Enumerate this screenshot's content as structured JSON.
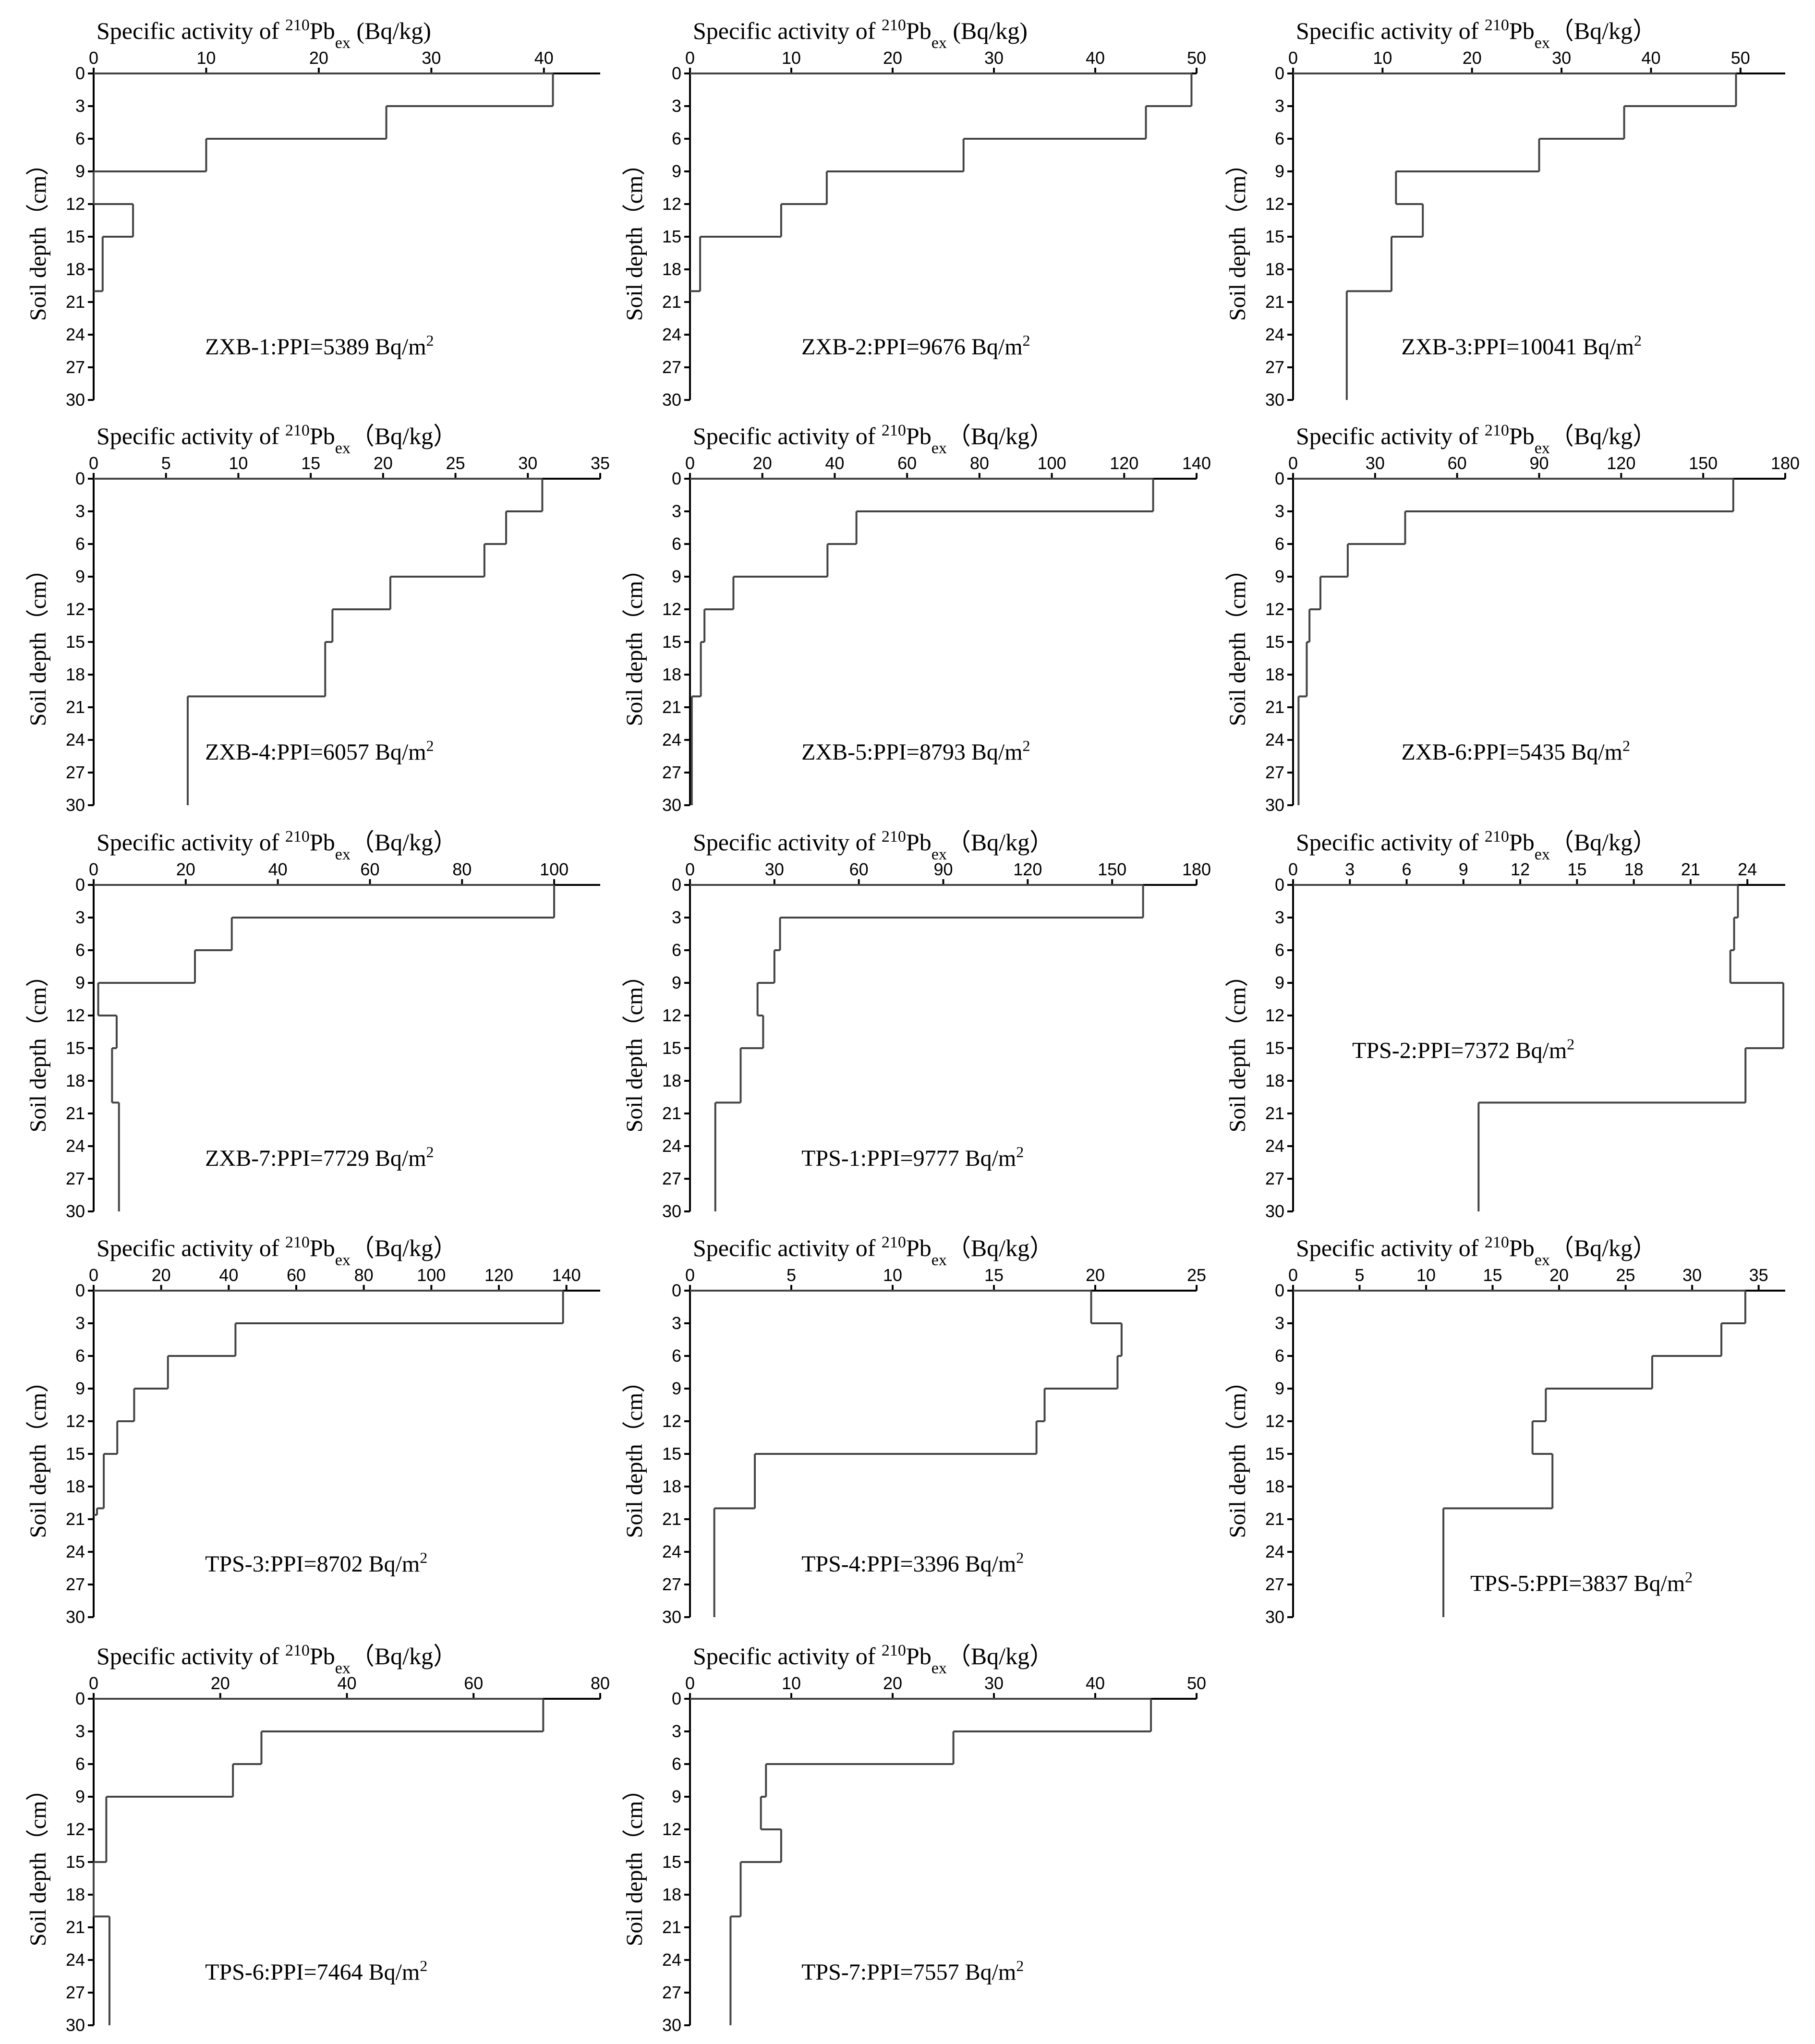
{
  "figure": {
    "line_color": "#444444",
    "axis_color": "#000000"
  },
  "chart_data": [
    {
      "id": "ZXB-1",
      "type": "line",
      "title": "Specific activity of",
      "title_sup": "210",
      "title_main": "Pb",
      "title_sub": "ex",
      "title_unit": " (Bq/kg)",
      "ylabel": "Soil depth（cm）",
      "xlim": [
        0,
        45
      ],
      "xticks": [
        0,
        10,
        20,
        30,
        40
      ],
      "ylim": [
        0,
        30
      ],
      "yticks": [
        0,
        3,
        6,
        9,
        12,
        15,
        18,
        21,
        24,
        27,
        30
      ],
      "annotation": "ZXB-1:PPI=5389 Bq/m",
      "annotation_sup": "2",
      "profile": [
        {
          "depth_top": 0,
          "depth_bottom": 3,
          "activity": 40.8
        },
        {
          "depth_top": 3,
          "depth_bottom": 6,
          "activity": 26
        },
        {
          "depth_top": 6,
          "depth_bottom": 9,
          "activity": 10
        },
        {
          "depth_top": 9,
          "depth_bottom": 12,
          "activity": 0
        },
        {
          "depth_top": 12,
          "depth_bottom": 15,
          "activity": 3.5
        },
        {
          "depth_top": 15,
          "depth_bottom": 20,
          "activity": 0.8
        }
      ]
    },
    {
      "id": "ZXB-2",
      "type": "line",
      "title": "Specific activity of",
      "title_sup": "210",
      "title_main": "Pb",
      "title_sub": "ex",
      "title_unit": " (Bq/kg)",
      "ylabel": "Soil depth（cm）",
      "xlim": [
        0,
        50
      ],
      "xticks": [
        0,
        10,
        20,
        30,
        40,
        50
      ],
      "ylim": [
        0,
        30
      ],
      "yticks": [
        0,
        3,
        6,
        9,
        12,
        15,
        18,
        21,
        24,
        27,
        30
      ],
      "annotation": "ZXB-2:PPI=9676 Bq/m",
      "annotation_sup": "2",
      "profile": [
        {
          "depth_top": 0,
          "depth_bottom": 3,
          "activity": 49.5
        },
        {
          "depth_top": 3,
          "depth_bottom": 6,
          "activity": 45
        },
        {
          "depth_top": 6,
          "depth_bottom": 9,
          "activity": 27
        },
        {
          "depth_top": 9,
          "depth_bottom": 12,
          "activity": 13.5
        },
        {
          "depth_top": 12,
          "depth_bottom": 15,
          "activity": 9
        },
        {
          "depth_top": 15,
          "depth_bottom": 20,
          "activity": 1
        }
      ]
    },
    {
      "id": "ZXB-3",
      "type": "line",
      "title": "Specific activity of",
      "title_sup": "210",
      "title_main": "Pb",
      "title_sub": "ex",
      "title_unit": "（Bq/kg）",
      "ylabel": "Soil depth（cm）",
      "xlim": [
        0,
        55
      ],
      "xticks": [
        0,
        10,
        20,
        30,
        40,
        50
      ],
      "ylim": [
        0,
        30
      ],
      "yticks": [
        0,
        3,
        6,
        9,
        12,
        15,
        18,
        21,
        24,
        27,
        30
      ],
      "annotation": "ZXB-3:PPI=10041 Bq/m",
      "annotation_sup": "2",
      "profile": [
        {
          "depth_top": 0,
          "depth_bottom": 3,
          "activity": 49.5
        },
        {
          "depth_top": 3,
          "depth_bottom": 6,
          "activity": 37
        },
        {
          "depth_top": 6,
          "depth_bottom": 9,
          "activity": 27.5
        },
        {
          "depth_top": 9,
          "depth_bottom": 12,
          "activity": 11.5
        },
        {
          "depth_top": 12,
          "depth_bottom": 15,
          "activity": 14.5
        },
        {
          "depth_top": 15,
          "depth_bottom": 20,
          "activity": 11
        },
        {
          "depth_top": 20,
          "depth_bottom": 30,
          "activity": 6
        }
      ]
    },
    {
      "id": "ZXB-4",
      "type": "line",
      "title": "Specific activity of",
      "title_sup": "210",
      "title_main": "Pb",
      "title_sub": "ex",
      "title_unit": "（Bq/kg）",
      "ylabel": "Soil depth（cm）",
      "xlim": [
        0,
        35
      ],
      "xticks": [
        0,
        5,
        10,
        15,
        20,
        25,
        30,
        35
      ],
      "ylim": [
        0,
        30
      ],
      "yticks": [
        0,
        3,
        6,
        9,
        12,
        15,
        18,
        21,
        24,
        27,
        30
      ],
      "annotation": "ZXB-4:PPI=6057 Bq/m",
      "annotation_sup": "2",
      "profile": [
        {
          "depth_top": 0,
          "depth_bottom": 3,
          "activity": 31
        },
        {
          "depth_top": 3,
          "depth_bottom": 6,
          "activity": 28.5
        },
        {
          "depth_top": 6,
          "depth_bottom": 9,
          "activity": 27
        },
        {
          "depth_top": 9,
          "depth_bottom": 12,
          "activity": 20.5
        },
        {
          "depth_top": 12,
          "depth_bottom": 15,
          "activity": 16.5
        },
        {
          "depth_top": 15,
          "depth_bottom": 20,
          "activity": 16
        },
        {
          "depth_top": 20,
          "depth_bottom": 30,
          "activity": 6.5
        }
      ]
    },
    {
      "id": "ZXB-5",
      "type": "line",
      "title": "Specific activity of",
      "title_sup": "210",
      "title_main": "Pb",
      "title_sub": "ex",
      "title_unit": "（Bq/kg）",
      "ylabel": "Soil depth（cm）",
      "xlim": [
        0,
        140
      ],
      "xticks": [
        0,
        20,
        40,
        60,
        80,
        100,
        120,
        140
      ],
      "ylim": [
        0,
        30
      ],
      "yticks": [
        0,
        3,
        6,
        9,
        12,
        15,
        18,
        21,
        24,
        27,
        30
      ],
      "annotation": "ZXB-5:PPI=8793 Bq/m",
      "annotation_sup": "2",
      "profile": [
        {
          "depth_top": 0,
          "depth_bottom": 3,
          "activity": 128
        },
        {
          "depth_top": 3,
          "depth_bottom": 6,
          "activity": 46
        },
        {
          "depth_top": 6,
          "depth_bottom": 9,
          "activity": 38
        },
        {
          "depth_top": 9,
          "depth_bottom": 12,
          "activity": 12
        },
        {
          "depth_top": 12,
          "depth_bottom": 15,
          "activity": 4
        },
        {
          "depth_top": 15,
          "depth_bottom": 20,
          "activity": 3
        },
        {
          "depth_top": 20,
          "depth_bottom": 30,
          "activity": 0.5
        }
      ]
    },
    {
      "id": "ZXB-6",
      "type": "line",
      "title": "Specific activity of",
      "title_sup": "210",
      "title_main": "Pb",
      "title_sub": "ex",
      "title_unit": "（Bq/kg）",
      "ylabel": "Soil depth（cm）",
      "xlim": [
        0,
        180
      ],
      "xticks": [
        0,
        30,
        60,
        90,
        120,
        150,
        180
      ],
      "ylim": [
        0,
        30
      ],
      "yticks": [
        0,
        3,
        6,
        9,
        12,
        15,
        18,
        21,
        24,
        27,
        30
      ],
      "annotation": "ZXB-6:PPI=5435 Bq/m",
      "annotation_sup": "2",
      "profile": [
        {
          "depth_top": 0,
          "depth_bottom": 3,
          "activity": 161
        },
        {
          "depth_top": 3,
          "depth_bottom": 6,
          "activity": 41
        },
        {
          "depth_top": 6,
          "depth_bottom": 9,
          "activity": 20
        },
        {
          "depth_top": 9,
          "depth_bottom": 12,
          "activity": 10
        },
        {
          "depth_top": 12,
          "depth_bottom": 15,
          "activity": 6
        },
        {
          "depth_top": 15,
          "depth_bottom": 20,
          "activity": 5
        },
        {
          "depth_top": 20,
          "depth_bottom": 30,
          "activity": 2
        }
      ]
    },
    {
      "id": "ZXB-7",
      "type": "line",
      "title": "Specific activity of",
      "title_sup": "210",
      "title_main": "Pb",
      "title_sub": "ex",
      "title_unit": "（Bq/kg）",
      "ylabel": "Soil depth（cm）",
      "xlim": [
        0,
        110
      ],
      "xticks": [
        0,
        20,
        40,
        60,
        80,
        100
      ],
      "ylim": [
        0,
        30
      ],
      "yticks": [
        0,
        3,
        6,
        9,
        12,
        15,
        18,
        21,
        24,
        27,
        30
      ],
      "annotation": "ZXB-7:PPI=7729 Bq/m",
      "annotation_sup": "2",
      "profile": [
        {
          "depth_top": 0,
          "depth_bottom": 3,
          "activity": 100
        },
        {
          "depth_top": 3,
          "depth_bottom": 6,
          "activity": 30
        },
        {
          "depth_top": 6,
          "depth_bottom": 9,
          "activity": 22
        },
        {
          "depth_top": 9,
          "depth_bottom": 12,
          "activity": 1
        },
        {
          "depth_top": 12,
          "depth_bottom": 15,
          "activity": 5
        },
        {
          "depth_top": 15,
          "depth_bottom": 20,
          "activity": 4
        },
        {
          "depth_top": 20,
          "depth_bottom": 30,
          "activity": 5.5
        }
      ]
    },
    {
      "id": "TPS-1",
      "type": "line",
      "title": "Specific activity of",
      "title_sup": "210",
      "title_main": "Pb",
      "title_sub": "ex",
      "title_unit": "（Bq/kg）",
      "ylabel": "Soil depth（cm）",
      "xlim": [
        0,
        180
      ],
      "xticks": [
        0,
        30,
        60,
        90,
        120,
        150,
        180
      ],
      "ylim": [
        0,
        30
      ],
      "yticks": [
        0,
        3,
        6,
        9,
        12,
        15,
        18,
        21,
        24,
        27,
        30
      ],
      "annotation": "TPS-1:PPI=9777 Bq/m",
      "annotation_sup": "2",
      "profile": [
        {
          "depth_top": 0,
          "depth_bottom": 3,
          "activity": 161
        },
        {
          "depth_top": 3,
          "depth_bottom": 6,
          "activity": 32
        },
        {
          "depth_top": 6,
          "depth_bottom": 9,
          "activity": 30
        },
        {
          "depth_top": 9,
          "depth_bottom": 12,
          "activity": 24
        },
        {
          "depth_top": 12,
          "depth_bottom": 15,
          "activity": 26
        },
        {
          "depth_top": 15,
          "depth_bottom": 20,
          "activity": 18
        },
        {
          "depth_top": 20,
          "depth_bottom": 30,
          "activity": 9
        }
      ]
    },
    {
      "id": "TPS-2",
      "type": "line",
      "title": "Specific activity of",
      "title_sup": "210",
      "title_main": "Pb",
      "title_sub": "ex",
      "title_unit": "（Bq/kg）",
      "ylabel": "Soil depth（cm）",
      "xlim": [
        0,
        26
      ],
      "xticks": [
        0,
        3,
        6,
        9,
        12,
        15,
        18,
        21,
        24
      ],
      "ylim": [
        0,
        30
      ],
      "yticks": [
        0,
        3,
        6,
        9,
        12,
        15,
        18,
        21,
        24,
        27,
        30
      ],
      "annotation": "TPS-2:PPI=7372 Bq/m",
      "annotation_sup": "2",
      "profile": [
        {
          "depth_top": 0,
          "depth_bottom": 3,
          "activity": 23.5
        },
        {
          "depth_top": 3,
          "depth_bottom": 6,
          "activity": 23.3
        },
        {
          "depth_top": 6,
          "depth_bottom": 9,
          "activity": 23.1
        },
        {
          "depth_top": 9,
          "depth_bottom": 15,
          "activity": 25.9
        },
        {
          "depth_top": 15,
          "depth_bottom": 20,
          "activity": 23.9
        },
        {
          "depth_top": 20,
          "depth_bottom": 30,
          "activity": 9.8
        }
      ]
    },
    {
      "id": "TPS-3",
      "type": "line",
      "title": "Specific activity of",
      "title_sup": "210",
      "title_main": "Pb",
      "title_sub": "ex",
      "title_unit": "（Bq/kg）",
      "ylabel": "Soil depth（cm）",
      "xlim": [
        0,
        150
      ],
      "xticks": [
        0,
        20,
        40,
        60,
        80,
        100,
        120,
        140
      ],
      "ylim": [
        0,
        30
      ],
      "yticks": [
        0,
        3,
        6,
        9,
        12,
        15,
        18,
        21,
        24,
        27,
        30
      ],
      "annotation": "TPS-3:PPI=8702 Bq/m",
      "annotation_sup": "2",
      "profile": [
        {
          "depth_top": 0,
          "depth_bottom": 3,
          "activity": 139
        },
        {
          "depth_top": 3,
          "depth_bottom": 6,
          "activity": 42
        },
        {
          "depth_top": 6,
          "depth_bottom": 9,
          "activity": 22
        },
        {
          "depth_top": 9,
          "depth_bottom": 12,
          "activity": 12
        },
        {
          "depth_top": 12,
          "depth_bottom": 15,
          "activity": 7
        },
        {
          "depth_top": 15,
          "depth_bottom": 20,
          "activity": 3
        },
        {
          "depth_top": 20,
          "depth_bottom": 20.6,
          "activity": 1
        }
      ]
    },
    {
      "id": "TPS-4",
      "type": "line",
      "title": "Specific activity of",
      "title_sup": "210",
      "title_main": "Pb",
      "title_sub": "ex",
      "title_unit": "（Bq/kg）",
      "ylabel": "Soil depth（cm）",
      "xlim": [
        0,
        25
      ],
      "xticks": [
        0,
        5,
        10,
        15,
        20,
        25
      ],
      "ylim": [
        0,
        30
      ],
      "yticks": [
        0,
        3,
        6,
        9,
        12,
        15,
        18,
        21,
        24,
        27,
        30
      ],
      "annotation": "TPS-4:PPI=3396 Bq/m",
      "annotation_sup": "2",
      "profile": [
        {
          "depth_top": 0,
          "depth_bottom": 3,
          "activity": 19.8
        },
        {
          "depth_top": 3,
          "depth_bottom": 6,
          "activity": 21.3
        },
        {
          "depth_top": 6,
          "depth_bottom": 9,
          "activity": 21.1
        },
        {
          "depth_top": 9,
          "depth_bottom": 12,
          "activity": 17.5
        },
        {
          "depth_top": 12,
          "depth_bottom": 15,
          "activity": 17.1
        },
        {
          "depth_top": 15,
          "depth_bottom": 20,
          "activity": 3.2
        },
        {
          "depth_top": 20,
          "depth_bottom": 30,
          "activity": 1.2
        }
      ]
    },
    {
      "id": "TPS-5",
      "type": "line",
      "title": "Specific activity of",
      "title_sup": "210",
      "title_main": "Pb",
      "title_sub": "ex",
      "title_unit": "（Bq/kg）",
      "ylabel": "Soil depth（cm）",
      "xlim": [
        0,
        37
      ],
      "xticks": [
        0,
        5,
        10,
        15,
        20,
        25,
        30,
        35
      ],
      "ylim": [
        0,
        30
      ],
      "yticks": [
        0,
        3,
        6,
        9,
        12,
        15,
        18,
        21,
        24,
        27,
        30
      ],
      "annotation": "TPS-5:PPI=3837 Bq/m",
      "annotation_sup": "2",
      "profile": [
        {
          "depth_top": 0,
          "depth_bottom": 3,
          "activity": 34
        },
        {
          "depth_top": 3,
          "depth_bottom": 6,
          "activity": 32.2
        },
        {
          "depth_top": 6,
          "depth_bottom": 9,
          "activity": 27
        },
        {
          "depth_top": 9,
          "depth_bottom": 12,
          "activity": 19
        },
        {
          "depth_top": 12,
          "depth_bottom": 15,
          "activity": 18
        },
        {
          "depth_top": 15,
          "depth_bottom": 20,
          "activity": 19.5
        },
        {
          "depth_top": 20,
          "depth_bottom": 30,
          "activity": 11.3
        }
      ]
    },
    {
      "id": "TPS-6",
      "type": "line",
      "title": "Specific activity of",
      "title_sup": "210",
      "title_main": "Pb",
      "title_sub": "ex",
      "title_unit": "（Bq/kg）",
      "ylabel": "Soil depth（cm）",
      "xlim": [
        0,
        80
      ],
      "xticks": [
        0,
        20,
        40,
        60,
        80
      ],
      "ylim": [
        0,
        30
      ],
      "yticks": [
        0,
        3,
        6,
        9,
        12,
        15,
        18,
        21,
        24,
        27,
        30
      ],
      "annotation": "TPS-6:PPI=7464 Bq/m",
      "annotation_sup": "2",
      "profile": [
        {
          "depth_top": 0,
          "depth_bottom": 3,
          "activity": 71
        },
        {
          "depth_top": 3,
          "depth_bottom": 6,
          "activity": 26.5
        },
        {
          "depth_top": 6,
          "depth_bottom": 9,
          "activity": 22
        },
        {
          "depth_top": 9,
          "depth_bottom": 15,
          "activity": 2
        },
        {
          "depth_top": 15,
          "depth_bottom": 20,
          "activity": 0
        },
        {
          "depth_top": 20,
          "depth_bottom": 30,
          "activity": 2.5
        }
      ]
    },
    {
      "id": "TPS-7",
      "type": "line",
      "title": "Specific activity of",
      "title_sup": "210",
      "title_main": "Pb",
      "title_sub": "ex",
      "title_unit": "（Bq/kg）",
      "ylabel": "Soil depth（cm）",
      "xlim": [
        0,
        50
      ],
      "xticks": [
        0,
        10,
        20,
        30,
        40,
        50
      ],
      "ylim": [
        0,
        30
      ],
      "yticks": [
        0,
        3,
        6,
        9,
        12,
        15,
        18,
        21,
        24,
        27,
        30
      ],
      "annotation": "TPS-7:PPI=7557 Bq/m",
      "annotation_sup": "2",
      "profile": [
        {
          "depth_top": 0,
          "depth_bottom": 3,
          "activity": 45.5
        },
        {
          "depth_top": 3,
          "depth_bottom": 6,
          "activity": 26
        },
        {
          "depth_top": 6,
          "depth_bottom": 9,
          "activity": 7.5
        },
        {
          "depth_top": 9,
          "depth_bottom": 12,
          "activity": 7
        },
        {
          "depth_top": 12,
          "depth_bottom": 15,
          "activity": 9
        },
        {
          "depth_top": 15,
          "depth_bottom": 20,
          "activity": 5
        },
        {
          "depth_top": 20,
          "depth_bottom": 30,
          "activity": 4
        }
      ]
    }
  ]
}
